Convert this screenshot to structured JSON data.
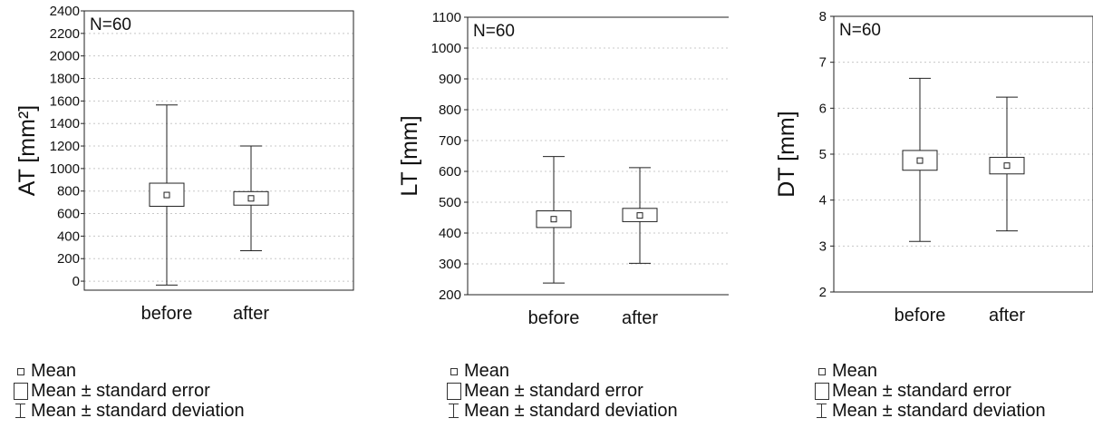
{
  "legend": {
    "mean_label": "Mean",
    "se_label": "Mean ± standard error",
    "sd_label": "Mean ± standard deviation"
  },
  "chart_data": [
    {
      "type": "box",
      "annotation": "N=60",
      "ylabel": "AT [mm²]",
      "categories": [
        "before",
        "after"
      ],
      "ylim": [
        -80,
        2400
      ],
      "yticks": [
        0,
        200,
        400,
        600,
        800,
        1000,
        1200,
        1400,
        1600,
        1800,
        2000,
        2200,
        2400
      ],
      "grid": true,
      "series": [
        {
          "category": "before",
          "mean": 765,
          "se_low": 665,
          "se_high": 870,
          "sd_low": -35,
          "sd_high": 1565
        },
        {
          "category": "after",
          "mean": 735,
          "se_low": 675,
          "se_high": 795,
          "sd_low": 270,
          "sd_high": 1200
        }
      ]
    },
    {
      "type": "box",
      "annotation": "N=60",
      "ylabel": "LT [mm]",
      "categories": [
        "before",
        "after"
      ],
      "ylim": [
        200,
        1100
      ],
      "yticks": [
        200,
        300,
        400,
        500,
        600,
        700,
        800,
        900,
        1000,
        1100
      ],
      "grid": true,
      "series": [
        {
          "category": "before",
          "mean": 445,
          "se_low": 418,
          "se_high": 472,
          "sd_low": 238,
          "sd_high": 648
        },
        {
          "category": "after",
          "mean": 457,
          "se_low": 437,
          "se_high": 480,
          "sd_low": 302,
          "sd_high": 612
        }
      ]
    },
    {
      "type": "box",
      "annotation": "N=60",
      "ylabel": "DT [mm]",
      "categories": [
        "before",
        "after"
      ],
      "ylim": [
        2,
        8
      ],
      "yticks": [
        2,
        3,
        4,
        5,
        6,
        7,
        8
      ],
      "grid": true,
      "series": [
        {
          "category": "before",
          "mean": 4.86,
          "se_low": 4.65,
          "se_high": 5.08,
          "sd_low": 3.1,
          "sd_high": 6.65
        },
        {
          "category": "after",
          "mean": 4.75,
          "se_low": 4.57,
          "se_high": 4.93,
          "sd_low": 3.33,
          "sd_high": 6.24
        }
      ]
    }
  ]
}
